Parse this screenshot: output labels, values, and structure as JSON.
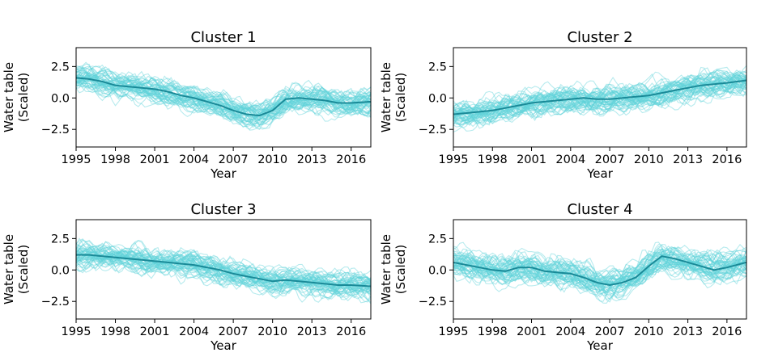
{
  "chart_data": [
    {
      "type": "line",
      "title": "Cluster 1",
      "xlabel": "Year",
      "ylabel": [
        "Water table",
        "(Scaled)"
      ],
      "xlim": [
        1995,
        2017.5
      ],
      "ylim": [
        -3.9,
        4.0
      ],
      "xticks": [
        1995,
        1998,
        2001,
        2004,
        2007,
        2010,
        2013,
        2016
      ],
      "yticks": [
        2.5,
        0.0,
        -2.5
      ],
      "ytick_labels": [
        "2.5",
        "0.0",
        "−2.5"
      ],
      "band": {
        "description": "many individual well series (light cyan)",
        "spread": 1.3
      },
      "mean_series": {
        "x": [
          1995,
          1996,
          1997,
          1998,
          1999,
          2000,
          2001,
          2002,
          2003,
          2004,
          2005,
          2006,
          2007,
          2008,
          2009,
          2010,
          2011,
          2012,
          2013,
          2014,
          2015,
          2016,
          2017.5
        ],
        "y": [
          1.6,
          1.5,
          1.3,
          1.0,
          0.9,
          0.8,
          0.7,
          0.5,
          0.2,
          0.0,
          -0.3,
          -0.6,
          -1.0,
          -1.3,
          -1.4,
          -1.0,
          -0.1,
          0.0,
          -0.1,
          -0.2,
          -0.4,
          -0.4,
          -0.3
        ]
      }
    },
    {
      "type": "line",
      "title": "Cluster 2",
      "xlabel": "Year",
      "ylabel": [
        "Water table",
        "(Scaled)"
      ],
      "xlim": [
        1995,
        2017.5
      ],
      "ylim": [
        -3.9,
        4.0
      ],
      "xticks": [
        1995,
        1998,
        2001,
        2004,
        2007,
        2010,
        2013,
        2016
      ],
      "yticks": [
        2.5,
        0.0,
        -2.5
      ],
      "ytick_labels": [
        "2.5",
        "0.0",
        "−2.5"
      ],
      "band": {
        "description": "many individual well series (light cyan)",
        "spread": 1.5
      },
      "mean_series": {
        "x": [
          1995,
          1996,
          1997,
          1998,
          1999,
          2000,
          2001,
          2002,
          2003,
          2004,
          2005,
          2006,
          2007,
          2008,
          2009,
          2010,
          2011,
          2012,
          2013,
          2014,
          2015,
          2016,
          2017.5
        ],
        "y": [
          -1.3,
          -1.2,
          -1.1,
          -1.0,
          -0.8,
          -0.6,
          -0.4,
          -0.3,
          -0.2,
          -0.1,
          0.0,
          -0.1,
          -0.1,
          0.0,
          0.1,
          0.2,
          0.4,
          0.6,
          0.8,
          1.0,
          1.1,
          1.2,
          1.4
        ]
      }
    },
    {
      "type": "line",
      "title": "Cluster 3",
      "xlabel": "Year",
      "ylabel": [
        "Water table",
        "(Scaled)"
      ],
      "xlim": [
        1995,
        2017.5
      ],
      "ylim": [
        -3.9,
        4.0
      ],
      "xticks": [
        1995,
        1998,
        2001,
        2004,
        2007,
        2010,
        2013,
        2016
      ],
      "yticks": [
        2.5,
        0.0,
        -2.5
      ],
      "ytick_labels": [
        "2.5",
        "0.0",
        "−2.5"
      ],
      "band": {
        "description": "many individual well series (light cyan)",
        "spread": 1.3
      },
      "mean_series": {
        "x": [
          1995,
          1996,
          1997,
          1998,
          1999,
          2000,
          2001,
          2002,
          2003,
          2004,
          2005,
          2006,
          2007,
          2008,
          2009,
          2010,
          2011,
          2012,
          2013,
          2014,
          2015,
          2016,
          2017.5
        ],
        "y": [
          1.2,
          1.2,
          1.1,
          1.0,
          0.9,
          0.8,
          0.7,
          0.6,
          0.5,
          0.4,
          0.2,
          0.0,
          -0.3,
          -0.5,
          -0.7,
          -0.9,
          -0.8,
          -0.9,
          -1.0,
          -1.1,
          -1.2,
          -1.2,
          -1.3
        ]
      }
    },
    {
      "type": "line",
      "title": "Cluster 4",
      "xlabel": "Year",
      "ylabel": [
        "Water table",
        "(Scaled)"
      ],
      "xlim": [
        1995,
        2017.5
      ],
      "ylim": [
        -3.9,
        4.0
      ],
      "xticks": [
        1995,
        1998,
        2001,
        2004,
        2007,
        2010,
        2013,
        2016
      ],
      "yticks": [
        2.5,
        0.0,
        -2.5
      ],
      "ytick_labels": [
        "2.5",
        "0.0",
        "−2.5"
      ],
      "band": {
        "description": "many individual well series (light cyan)",
        "spread": 1.6
      },
      "mean_series": {
        "x": [
          1995,
          1996,
          1997,
          1998,
          1999,
          2000,
          2001,
          2002,
          2003,
          2004,
          2005,
          2006,
          2007,
          2008,
          2009,
          2010,
          2011,
          2012,
          2013,
          2014,
          2015,
          2016,
          2017.5
        ],
        "y": [
          0.6,
          0.4,
          0.2,
          0.0,
          -0.1,
          0.2,
          0.2,
          -0.1,
          -0.2,
          -0.3,
          -0.6,
          -1.0,
          -1.2,
          -1.0,
          -0.6,
          0.3,
          1.1,
          0.9,
          0.6,
          0.3,
          0.0,
          0.2,
          0.6
        ]
      }
    }
  ],
  "colors": {
    "band": "#5fd3d9",
    "mean": "#1a8a98",
    "axis": "#000000"
  }
}
